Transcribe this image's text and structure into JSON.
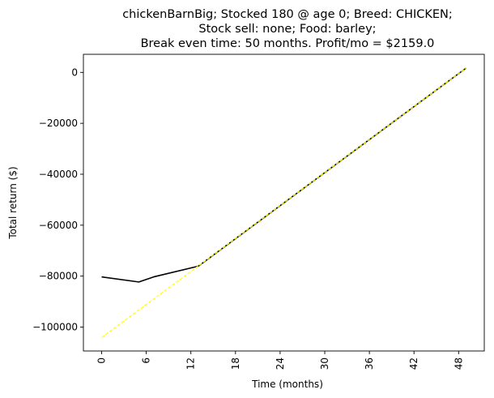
{
  "chart_data": {
    "type": "line",
    "title_lines": [
      "chickenBarnBig; Stocked 180 @ age 0; Breed: CHICKEN;",
      "Stock sell: none; Food: barley;",
      "Break even time: 50 months. Profit/mo = $2159.0"
    ],
    "xlabel": "Time (months)",
    "ylabel": "Total return ($)",
    "xlim": [
      -2.45,
      51.45
    ],
    "ylim": [
      -109400,
      7100
    ],
    "xticks": [
      0,
      6,
      12,
      18,
      24,
      30,
      36,
      42,
      48
    ],
    "yticks": [
      0,
      -20000,
      -40000,
      -60000,
      -80000,
      -100000
    ],
    "ytick_labels": [
      "0",
      "−20000",
      "−40000",
      "−60000",
      "−80000",
      "−100000"
    ],
    "grid": false,
    "series": [
      {
        "color": "#000000",
        "style": "solid",
        "x": [
          0,
          5,
          7,
          13,
          49
        ],
        "y": [
          -80300,
          -82300,
          -80300,
          -76100,
          1700
        ]
      },
      {
        "color": "#ffff00",
        "style": "dashed",
        "x": [
          0,
          49
        ],
        "y": [
          -104100,
          1700
        ]
      }
    ]
  }
}
